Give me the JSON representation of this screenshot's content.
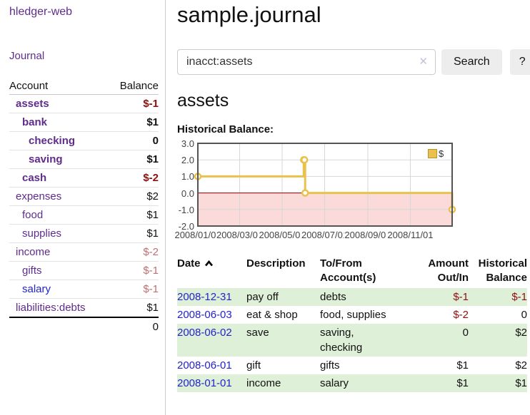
{
  "colors": {
    "link-purple": "#5f2c8c",
    "link-blue": "#2323cc",
    "neg-strong": "#8f0f0f",
    "neg-muted": "#c07070",
    "row-green": "#dff0d8",
    "chart-line": "#e8c24d",
    "chart-neg-fill": "#fbdada",
    "zero-line": "#8b0000",
    "grid-line": "#d7d7d7",
    "chart-border": "#545454",
    "btn-bg": "#ededed"
  },
  "sidebar": {
    "app_title": "hledger-web",
    "journal_link": "Journal",
    "accounts_header": {
      "account": "Account",
      "balance": "Balance"
    },
    "accounts": [
      {
        "name": "assets",
        "indent": 1,
        "bold": true,
        "balance": "$-1",
        "balance_style": "neg-strong",
        "link_style": "purple"
      },
      {
        "name": "bank",
        "indent": 2,
        "bold": true,
        "balance": "$1",
        "balance_style": "normal",
        "link_style": "purple"
      },
      {
        "name": "checking",
        "indent": 3,
        "bold": true,
        "balance": "0",
        "balance_style": "normal",
        "link_style": "purple"
      },
      {
        "name": "saving",
        "indent": 3,
        "bold": true,
        "balance": "$1",
        "balance_style": "normal",
        "link_style": "purple"
      },
      {
        "name": "cash",
        "indent": 2,
        "bold": true,
        "balance": "$-2",
        "balance_style": "neg-strong",
        "link_style": "purple"
      },
      {
        "name": "expenses",
        "indent": 1,
        "bold": false,
        "balance": "$2",
        "balance_style": "normal",
        "link_style": "purple"
      },
      {
        "name": "food",
        "indent": 2,
        "bold": false,
        "balance": "$1",
        "balance_style": "normal",
        "link_style": "purple"
      },
      {
        "name": "supplies",
        "indent": 2,
        "bold": false,
        "balance": "$1",
        "balance_style": "normal",
        "link_style": "purple"
      },
      {
        "name": "income",
        "indent": 1,
        "bold": false,
        "balance": "$-2",
        "balance_style": "neg-muted",
        "link_style": "purple"
      },
      {
        "name": "gifts",
        "indent": 2,
        "bold": false,
        "balance": "$-1",
        "balance_style": "neg-muted",
        "link_style": "purple"
      },
      {
        "name": "salary",
        "indent": 2,
        "bold": false,
        "balance": "$-1",
        "balance_style": "neg-muted",
        "link_style": "blue"
      },
      {
        "name": "liabilities:debts",
        "indent": 1,
        "bold": false,
        "balance": "$1",
        "balance_style": "normal",
        "link_style": "purple"
      }
    ],
    "total": "0"
  },
  "main": {
    "title": "sample.journal",
    "search": {
      "value": "inacct:assets",
      "clear_icon": "✕",
      "button_label": "Search",
      "help_label": "?"
    },
    "account_heading": "assets",
    "chart_label": "Historical Balance:"
  },
  "chart_data": {
    "type": "line",
    "title": "Historical Balance",
    "step": true,
    "x_start": "2008-01-01",
    "x_end": "2008-12-31",
    "ylim": [
      -2,
      3
    ],
    "grid": true,
    "y_ticks": [
      "3.0",
      "2.0",
      "1.0",
      "0.0",
      "-1.0",
      "-2.0"
    ],
    "x_ticks": [
      {
        "date": "2008-01-01",
        "label": "2008/01/01"
      },
      {
        "date": "2008-03-01",
        "label": "2008/03/01"
      },
      {
        "date": "2008-05-01",
        "label": "2008/05/01"
      },
      {
        "date": "2008-07-01",
        "label": "2008/07/01"
      },
      {
        "date": "2008-09-01",
        "label": "2008/09/01"
      },
      {
        "date": "2008-11-01",
        "label": "2008/11/01"
      }
    ],
    "series": [
      {
        "name": "$",
        "color": "#e8c24d",
        "points": [
          {
            "date": "2008-01-01",
            "value": 1
          },
          {
            "date": "2008-06-01",
            "value": 2
          },
          {
            "date": "2008-06-02",
            "value": 2
          },
          {
            "date": "2008-06-03",
            "value": 0
          },
          {
            "date": "2008-12-31",
            "value": -1
          }
        ]
      }
    ],
    "negative_region_fill": "#fbdada",
    "zero_line_color": "#8b0000",
    "legend_position": "top-right",
    "legend_label": "$"
  },
  "register": {
    "headers": {
      "date": "Date",
      "description": "Description",
      "accounts": "To/From Account(s)",
      "amount": "Amount Out/In",
      "balance": "Historical Balance"
    },
    "sort_icon": "chevron-up",
    "rows": [
      {
        "date": "2008-12-31",
        "description": "pay off",
        "accounts": "debts",
        "amount": "$-1",
        "amount_negative": true,
        "balance": "$-1",
        "balance_negative": true,
        "shaded": true
      },
      {
        "date": "2008-06-03",
        "description": "eat & shop",
        "accounts": "food, supplies",
        "amount": "$-2",
        "amount_negative": true,
        "balance": "0",
        "balance_negative": false,
        "shaded": false
      },
      {
        "date": "2008-06-02",
        "description": "save",
        "accounts": "saving, checking",
        "amount": "0",
        "amount_negative": false,
        "balance": "$2",
        "balance_negative": false,
        "shaded": true
      },
      {
        "date": "2008-06-01",
        "description": "gift",
        "accounts": "gifts",
        "amount": "$1",
        "amount_negative": false,
        "balance": "$2",
        "balance_negative": false,
        "shaded": false
      },
      {
        "date": "2008-01-01",
        "description": "income",
        "accounts": "salary",
        "amount": "$1",
        "amount_negative": false,
        "balance": "$1",
        "balance_negative": false,
        "shaded": true
      }
    ]
  }
}
